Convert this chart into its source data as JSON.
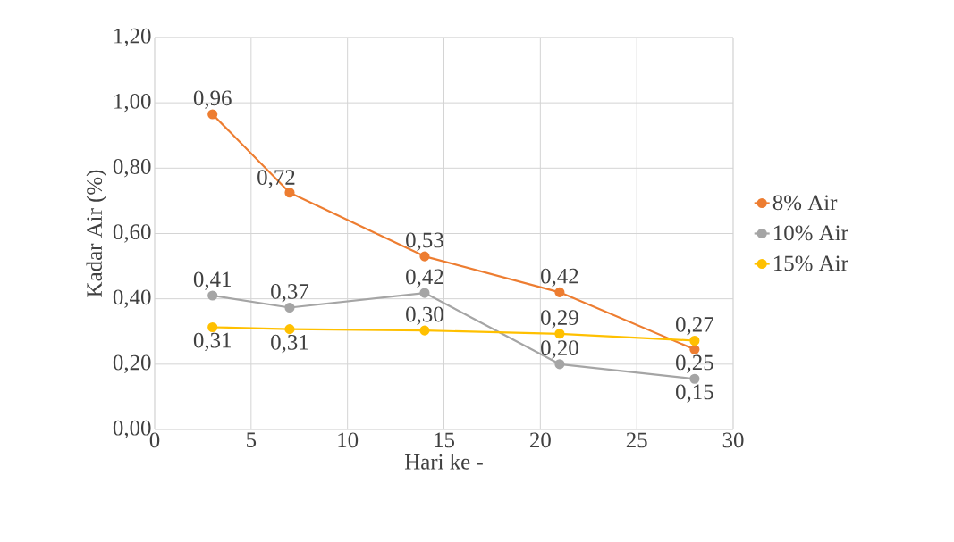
{
  "chart_data": {
    "type": "line",
    "xlabel": "Hari ke -",
    "ylabel": "Kadar Air (%)",
    "x": [
      3,
      7,
      14,
      21,
      28
    ],
    "series": [
      {
        "name": "8% Air",
        "color": "#ed7d31",
        "values": [
          0.965,
          0.725,
          0.53,
          0.42,
          0.245
        ],
        "value_labels": [
          "0,96",
          "0,72",
          "0,53",
          "0,42",
          "0,25"
        ]
      },
      {
        "name": "10% Air",
        "color": "#a5a5a5",
        "values": [
          0.41,
          0.373,
          0.418,
          0.2,
          0.155
        ],
        "value_labels": [
          "0,41",
          "0,37",
          "0,42",
          "0,20",
          "0,15"
        ]
      },
      {
        "name": "15% Air",
        "color": "#ffc000",
        "values": [
          0.313,
          0.307,
          0.303,
          0.293,
          0.272
        ],
        "value_labels": [
          "0,31",
          "0,31",
          "0,30",
          "0,29",
          "0,27"
        ]
      }
    ],
    "xlim": [
      0,
      30
    ],
    "xticks": [
      0,
      5,
      10,
      15,
      20,
      25,
      30
    ],
    "ylim": [
      0,
      1.2
    ],
    "yticks": [
      {
        "value": 0,
        "label": "0,00"
      },
      {
        "value": 0.2,
        "label": "0,20"
      },
      {
        "value": 0.4,
        "label": "0,40"
      },
      {
        "value": 0.6,
        "label": "0,60"
      },
      {
        "value": 0.8,
        "label": "0,80"
      },
      {
        "value": 1.0,
        "label": "1,00"
      },
      {
        "value": 1.2,
        "label": "1,20"
      }
    ],
    "grid": true,
    "legend": "right",
    "marker": "circle",
    "line_style": "solid"
  }
}
